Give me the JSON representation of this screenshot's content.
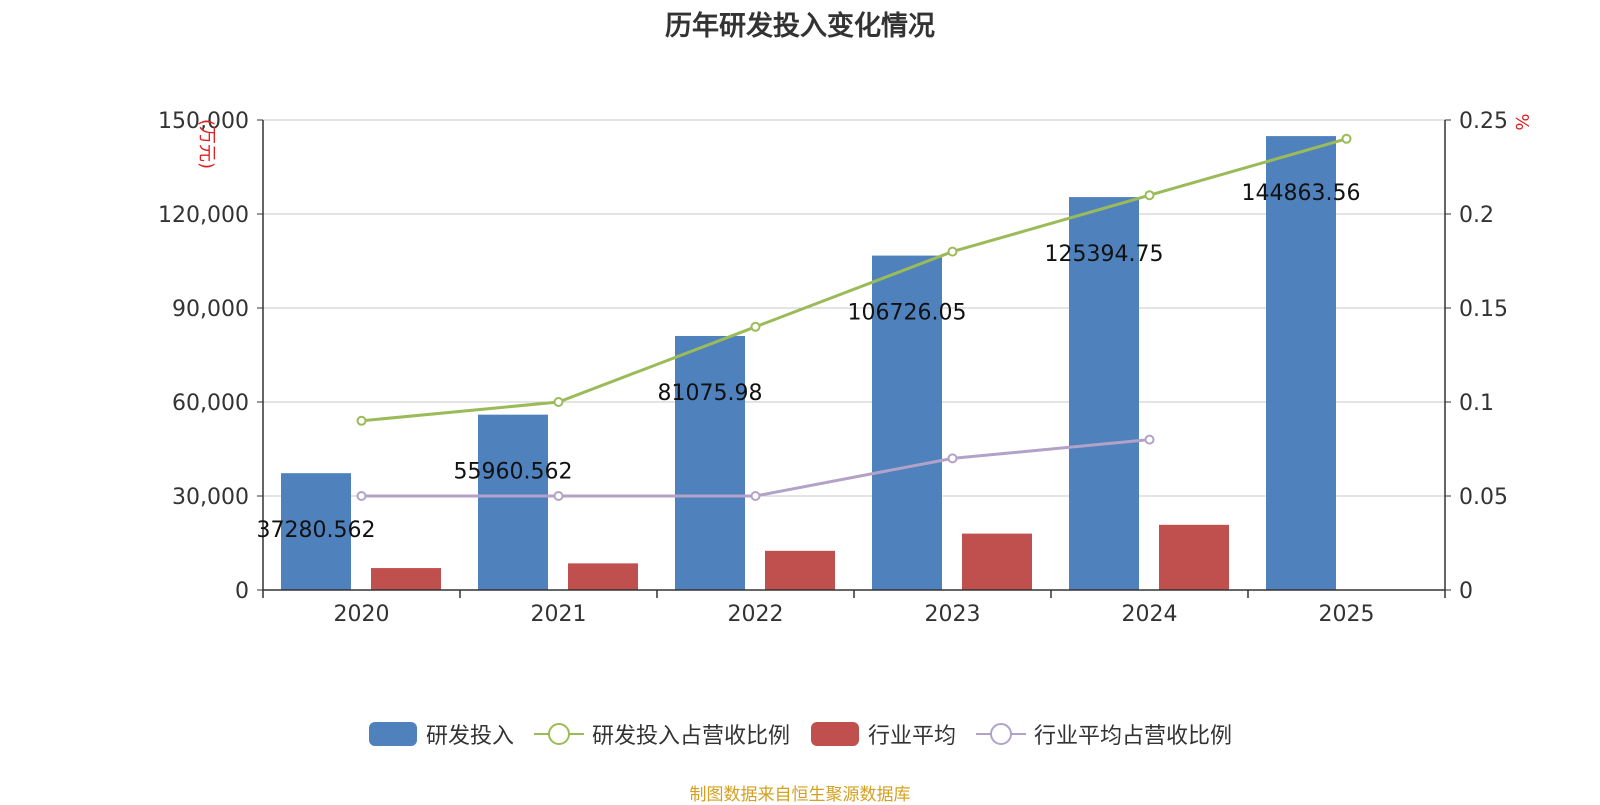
{
  "title": "历年研发投入变化情况",
  "source_note": "制图数据来自恒生聚源数据库",
  "colors": {
    "rd_bar": "#4f81bd",
    "industry_bar": "#c0504d",
    "rd_ratio_line": "#9bbb59",
    "industry_ratio_line": "#b3a2c7",
    "axis_unit": "#e02020",
    "grid": "#c8c8c8",
    "source": "#d4a020"
  },
  "chart_data": {
    "type": "bar",
    "categories": [
      "2020",
      "2021",
      "2022",
      "2023",
      "2024",
      "2025"
    ],
    "y_left": {
      "unit_label": "(万元)",
      "min": 0,
      "max": 150000,
      "ticks": [
        "0",
        "30,000",
        "60,000",
        "90,000",
        "120,000",
        "150,000"
      ],
      "tick_values": [
        0,
        30000,
        60000,
        90000,
        120000,
        150000
      ]
    },
    "y_right": {
      "unit_label": "%",
      "min": 0,
      "max": 0.25,
      "ticks": [
        "0",
        "0.05",
        "0.1",
        "0.15",
        "0.2",
        "0.25"
      ],
      "tick_values": [
        0,
        0.05,
        0.1,
        0.15,
        0.2,
        0.25
      ]
    },
    "grid": true,
    "legend_position": "bottom",
    "series": [
      {
        "name": "研发投入",
        "type": "bar",
        "axis": "left",
        "values": [
          37280.562,
          55960.562,
          81075.98,
          106726.05,
          125394.75,
          144863.56
        ],
        "data_labels": [
          "37280.562",
          "55960.562",
          "81075.98",
          "106726.05",
          "125394.75",
          "144863.56"
        ]
      },
      {
        "name": "研发投入占营收比例",
        "type": "line",
        "axis": "right",
        "values": [
          0.09,
          0.1,
          0.14,
          0.18,
          0.21,
          0.24
        ]
      },
      {
        "name": "行业平均",
        "type": "bar",
        "axis": "left",
        "values": [
          7000,
          8500,
          12500,
          18000,
          20800,
          null
        ]
      },
      {
        "name": "行业平均占营收比例",
        "type": "line",
        "axis": "right",
        "values": [
          0.05,
          0.05,
          0.05,
          0.07,
          0.08,
          null
        ]
      }
    ]
  }
}
